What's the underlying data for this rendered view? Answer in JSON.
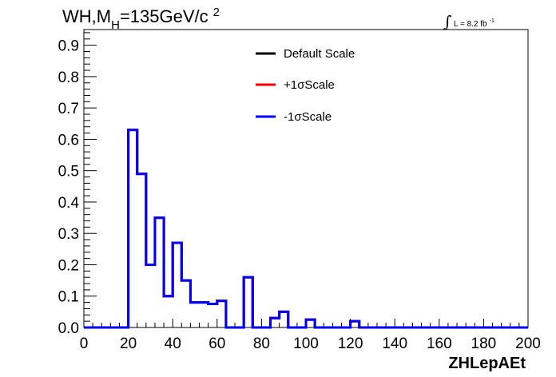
{
  "chart_data": {
    "type": "line",
    "title": {
      "prefix": "WH,M",
      "subscript": "H",
      "value": "=135GeV/c",
      "superscript": "2"
    },
    "luminosity": {
      "label": "L = 8.2 fb",
      "exponent": "-1"
    },
    "xlabel": "ZHLepAEt",
    "ylabel": "",
    "xlim": [
      0,
      200
    ],
    "ylim": [
      0,
      0.95
    ],
    "x_ticks": [
      "0",
      "20",
      "40",
      "60",
      "80",
      "100",
      "120",
      "140",
      "160",
      "180",
      "200"
    ],
    "y_ticks": [
      "0.0",
      "0.1",
      "0.2",
      "0.3",
      "0.4",
      "0.5",
      "0.6",
      "0.7",
      "0.8",
      "0.9"
    ],
    "legend_position": "top-center",
    "bin_width": 4,
    "bin_edges_start": 0,
    "series": [
      {
        "name": "Default Scale",
        "color": "#000000",
        "values": [
          0,
          0,
          0,
          0,
          0,
          0.63,
          0.49,
          0.2,
          0.35,
          0.1,
          0.27,
          0.15,
          0.08,
          0.08,
          0.075,
          0.085,
          0,
          0,
          0.16,
          0,
          0,
          0.03,
          0.05,
          0,
          0,
          0.025,
          0,
          0,
          0,
          0,
          0.02,
          0,
          0,
          0,
          0,
          0,
          0,
          0,
          0,
          0,
          0,
          0,
          0,
          0,
          0,
          0,
          0,
          0,
          0,
          0
        ]
      },
      {
        "name": "+1σScale",
        "color": "#ff0000",
        "values": [
          0,
          0,
          0,
          0,
          0,
          0.63,
          0.49,
          0.2,
          0.35,
          0.1,
          0.27,
          0.15,
          0.08,
          0.08,
          0.075,
          0.085,
          0,
          0,
          0.16,
          0,
          0,
          0.03,
          0.05,
          0,
          0,
          0.025,
          0,
          0,
          0,
          0,
          0.02,
          0,
          0,
          0,
          0,
          0,
          0,
          0,
          0,
          0,
          0,
          0,
          0,
          0,
          0,
          0,
          0,
          0,
          0,
          0
        ]
      },
      {
        "name": "-1σScale",
        "color": "#0000ff",
        "values": [
          0,
          0,
          0,
          0,
          0,
          0.63,
          0.49,
          0.2,
          0.35,
          0.1,
          0.27,
          0.15,
          0.08,
          0.08,
          0.075,
          0.085,
          0,
          0,
          0.16,
          0,
          0,
          0.03,
          0.05,
          0,
          0,
          0.025,
          0,
          0,
          0,
          0,
          0.02,
          0,
          0,
          0,
          0,
          0,
          0,
          0,
          0,
          0,
          0,
          0,
          0,
          0,
          0,
          0,
          0,
          0,
          0,
          0
        ]
      }
    ]
  }
}
